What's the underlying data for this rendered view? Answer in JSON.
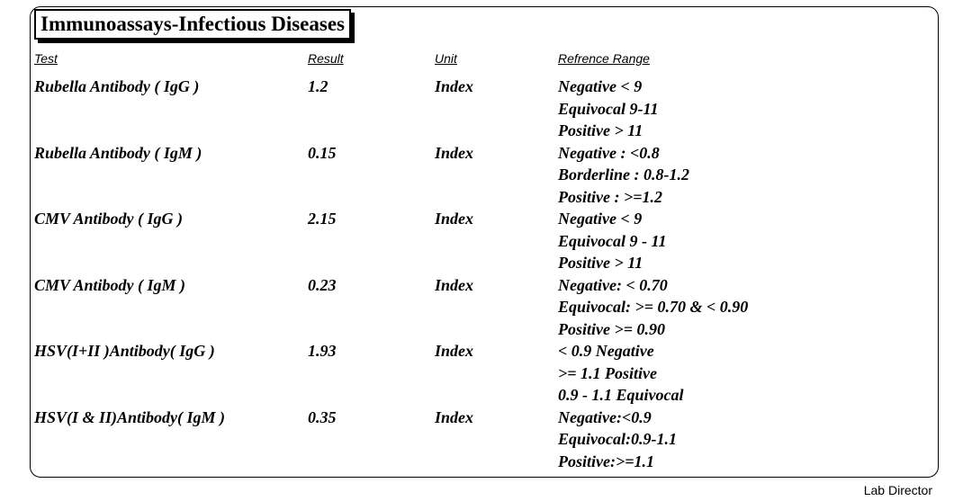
{
  "section_title": "Immunoassays-Infectious Diseases",
  "headers": {
    "test": "Test",
    "result": "Result",
    "unit": "Unit",
    "range": "Refrence Range"
  },
  "rows": [
    {
      "test": "Rubella Antibody ( IgG )",
      "result": "1.2",
      "unit": "Index",
      "range": [
        "Negative < 9",
        "Equivocal 9-11",
        "Positive > 11"
      ]
    },
    {
      "test": "Rubella Antibody ( IgM )",
      "result": "0.15",
      "unit": "Index",
      "range": [
        "Negative : <0.8",
        "Borderline : 0.8-1.2",
        "Positive : >=1.2"
      ]
    },
    {
      "test": "CMV Antibody ( IgG )",
      "result": "2.15",
      "unit": "Index",
      "range": [
        "Negative < 9",
        "Equivocal 9 - 11",
        "Positive > 11"
      ]
    },
    {
      "test": "CMV Antibody ( IgM )",
      "result": "0.23",
      "unit": "Index",
      "range": [
        "Negative: < 0.70",
        "Equivocal: >= 0.70 & < 0.90",
        "Positive >= 0.90"
      ]
    },
    {
      "test": "HSV(I+II )Antibody( IgG )",
      "result": "1.93",
      "unit": "Index",
      "range": [
        "< 0.9     Negative",
        ">= 1.1     Positive",
        "0.9 - 1.1 Equivocal"
      ]
    },
    {
      "test": "HSV(I & II)Antibody( IgM )",
      "result": "0.35",
      "unit": "Index",
      "range": [
        "Negative:<0.9",
        "Equivocal:0.9-1.1",
        "Positive:>=1.1"
      ]
    }
  ],
  "footer": "Lab Director"
}
